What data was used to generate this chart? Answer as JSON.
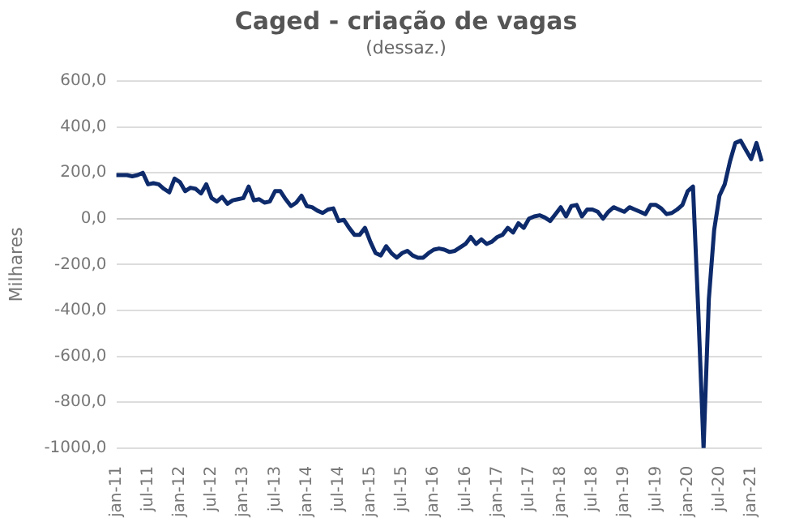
{
  "chart_data": {
    "type": "line",
    "title": "Caged - criação de vagas",
    "subtitle": "(dessaz.)",
    "ylabel": "Milhares",
    "categories": [
      "jan-11",
      null,
      null,
      null,
      null,
      null,
      "jul-11",
      null,
      null,
      null,
      null,
      null,
      "jan-12",
      null,
      null,
      null,
      null,
      null,
      "jul-12",
      null,
      null,
      null,
      null,
      null,
      "jan-13",
      null,
      null,
      null,
      null,
      null,
      "jul-13",
      null,
      null,
      null,
      null,
      null,
      "jan-14",
      null,
      null,
      null,
      null,
      null,
      "jul-14",
      null,
      null,
      null,
      null,
      null,
      "jan-15",
      null,
      null,
      null,
      null,
      null,
      "jul-15",
      null,
      null,
      null,
      null,
      null,
      "jan-16",
      null,
      null,
      null,
      null,
      null,
      "jul-16",
      null,
      null,
      null,
      null,
      null,
      "jan-17",
      null,
      null,
      null,
      null,
      null,
      "jul-17",
      null,
      null,
      null,
      null,
      null,
      "jan-18",
      null,
      null,
      null,
      null,
      null,
      "jul-18",
      null,
      null,
      null,
      null,
      null,
      "jan-19",
      null,
      null,
      null,
      null,
      null,
      "jul-19",
      null,
      null,
      null,
      null,
      null,
      "jan-20",
      null,
      null,
      null,
      null,
      null,
      "jul-20",
      null,
      null,
      null,
      null,
      null,
      "jan-21",
      null,
      null
    ],
    "series": [
      {
        "color": "#0d2a6b",
        "values": [
          190,
          190,
          190,
          185,
          190,
          200,
          150,
          155,
          150,
          130,
          115,
          175,
          160,
          120,
          135,
          130,
          110,
          150,
          90,
          75,
          95,
          65,
          80,
          85,
          90,
          140,
          80,
          85,
          70,
          75,
          120,
          120,
          85,
          55,
          70,
          100,
          55,
          50,
          35,
          25,
          40,
          45,
          -10,
          -5,
          -40,
          -70,
          -70,
          -40,
          -100,
          -150,
          -160,
          -120,
          -150,
          -170,
          -150,
          -140,
          -160,
          -170,
          -170,
          -150,
          -135,
          -130,
          -135,
          -145,
          -140,
          -125,
          -110,
          -80,
          -110,
          -90,
          -110,
          -100,
          -80,
          -70,
          -40,
          -60,
          -20,
          -40,
          0,
          10,
          15,
          5,
          -10,
          20,
          50,
          10,
          55,
          60,
          10,
          40,
          40,
          30,
          0,
          30,
          50,
          40,
          30,
          50,
          40,
          30,
          20,
          60,
          60,
          45,
          20,
          25,
          40,
          60,
          120,
          140,
          -400,
          -1000,
          -350,
          -50,
          100,
          150,
          250,
          330,
          340,
          300,
          260,
          330,
          250
        ]
      }
    ],
    "ylim": [
      -1000,
      600
    ],
    "yticks": [
      {
        "value": -1000,
        "label": "-1000,0"
      },
      {
        "value": -800,
        "label": "-800,0"
      },
      {
        "value": -600,
        "label": "-600,0"
      },
      {
        "value": -400,
        "label": "-400,0"
      },
      {
        "value": -200,
        "label": "-200,0"
      },
      {
        "value": 0,
        "label": "0,0"
      },
      {
        "value": 200,
        "label": "200,0"
      },
      {
        "value": 400,
        "label": "400,0"
      },
      {
        "value": 600,
        "label": "600,0"
      }
    ],
    "grid": "y",
    "line_style": "solid",
    "marker": "none",
    "legend": false
  }
}
